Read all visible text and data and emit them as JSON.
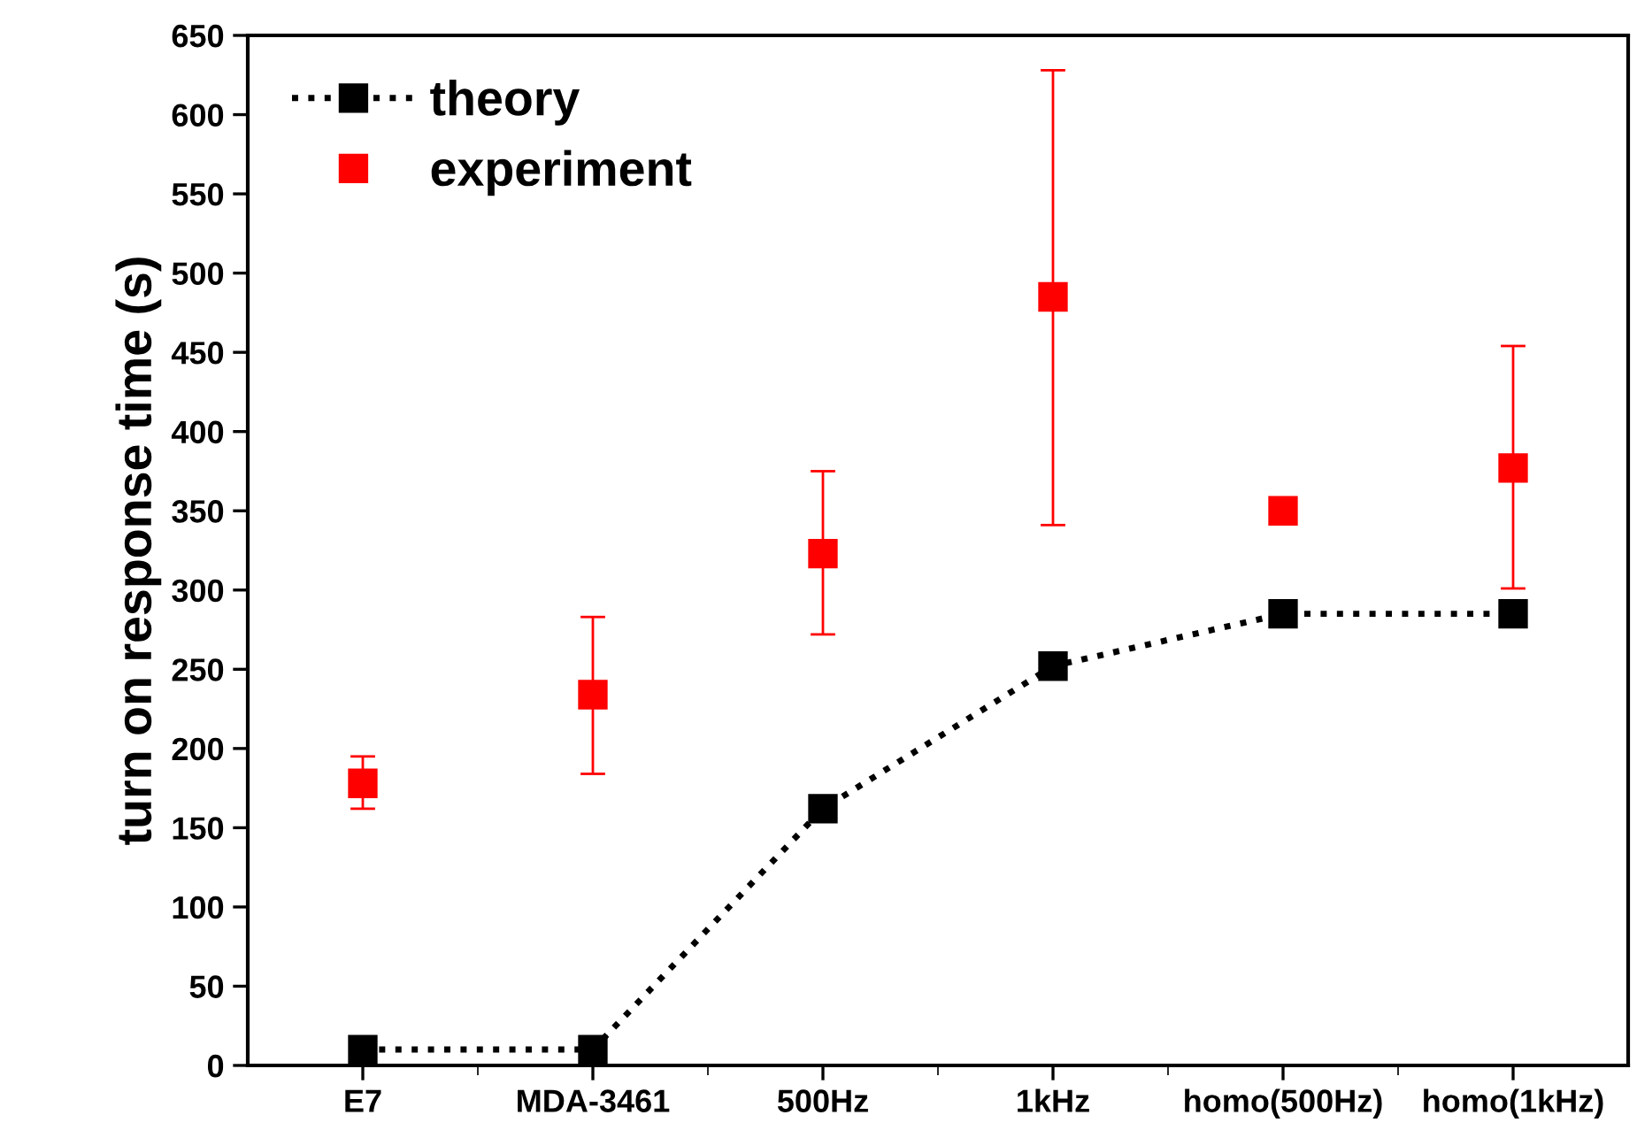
{
  "chart_data": {
    "type": "line",
    "ylabel": "turn on response time (s)",
    "categories": [
      "E7",
      "MDA-3461",
      "500Hz",
      "1kHz",
      "homo(500Hz)",
      "homo(1kHz)"
    ],
    "series": [
      {
        "name": "theory",
        "color": "#000000",
        "marker": "square",
        "line_style": "dotted",
        "values": [
          10,
          10,
          162,
          252,
          285,
          285
        ]
      },
      {
        "name": "experiment",
        "type": "scatter",
        "color": "#ff0000",
        "marker": "square",
        "values": [
          178,
          234,
          323,
          485,
          350,
          377
        ],
        "errors": [
          [
            162,
            195
          ],
          [
            184,
            283
          ],
          [
            272,
            375
          ],
          [
            341,
            628
          ],
          null,
          [
            301,
            454
          ]
        ]
      }
    ],
    "ylim": [
      0,
      650
    ],
    "yticks": [
      0,
      50,
      100,
      150,
      200,
      250,
      300,
      350,
      400,
      450,
      500,
      550,
      600,
      650
    ],
    "grid": false,
    "legend": "top left"
  }
}
